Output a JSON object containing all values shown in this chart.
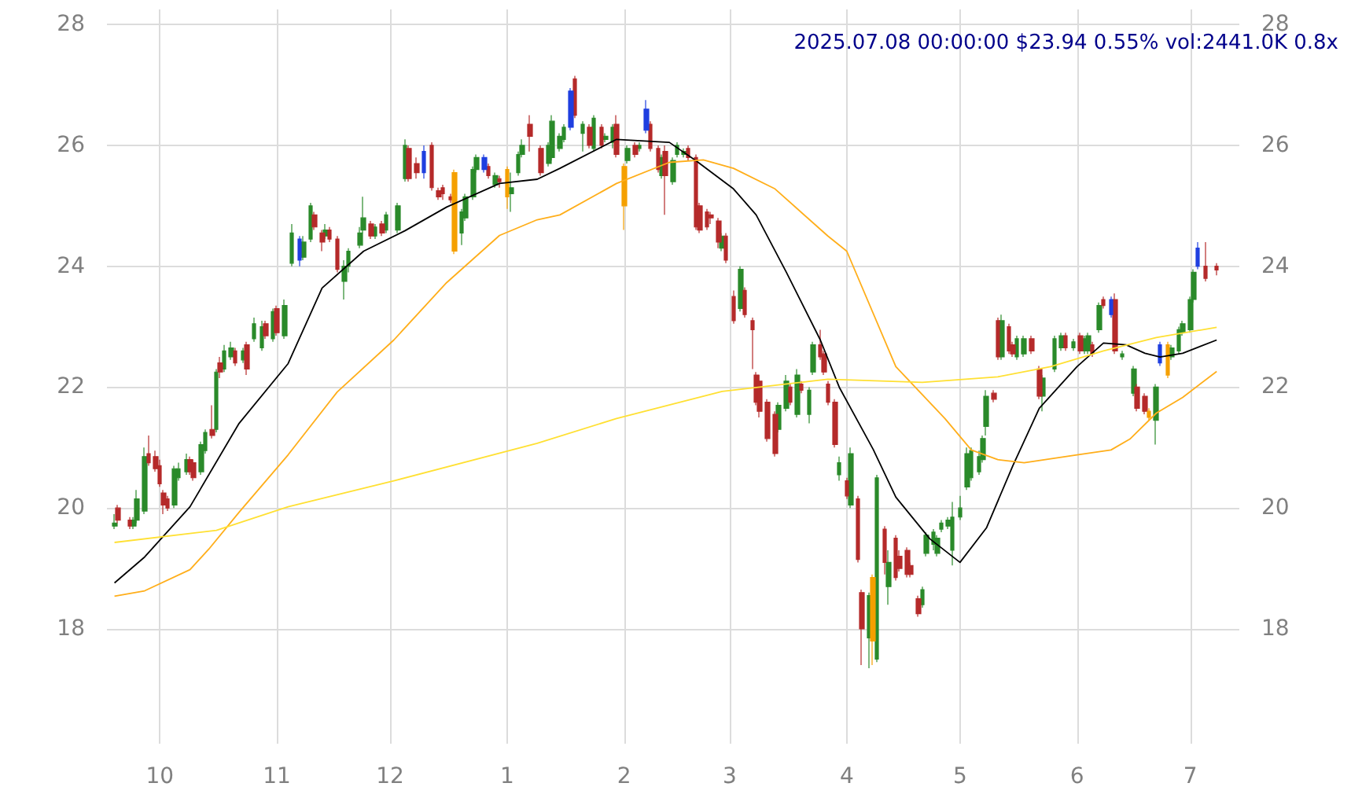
{
  "chart_data": {
    "type": "candlestick",
    "title": "2025.07.08 00:00:00 $23.94 0.55% vol:2441.0K 0.8x",
    "grid": true,
    "marker": "none",
    "line_style": "solid",
    "xlim": [
      "2024-09-17",
      "2025-07-14"
    ],
    "xticks": [
      {
        "value": "2024-10-01",
        "label": "10"
      },
      {
        "value": "2024-11-01",
        "label": "11"
      },
      {
        "value": "2024-12-01",
        "label": "12"
      },
      {
        "value": "2025-01-01",
        "label": "1"
      },
      {
        "value": "2025-02-01",
        "label": "2"
      },
      {
        "value": "2025-03-01",
        "label": "3"
      },
      {
        "value": "2025-04-01",
        "label": "4"
      },
      {
        "value": "2025-05-01",
        "label": "5"
      },
      {
        "value": "2025-06-01",
        "label": "6"
      },
      {
        "value": "2025-07-01",
        "label": "7"
      }
    ],
    "ylim": [
      16.1,
      28.25
    ],
    "yticks": [
      18,
      20,
      22,
      24,
      26,
      28
    ],
    "y2lim": [
      16.1,
      28.25
    ],
    "y2ticks": [
      18,
      20,
      22,
      24,
      26,
      28
    ],
    "x": [
      "2024-09-19",
      "2024-09-20",
      "2024-09-23",
      "2024-09-24",
      "2024-09-25",
      "2024-09-27",
      "2024-09-28",
      "2024-09-30",
      "2024-10-01",
      "2024-10-02",
      "2024-10-03",
      "2024-10-05",
      "2024-10-06",
      "2024-10-08",
      "2024-10-09",
      "2024-10-10",
      "2024-10-12",
      "2024-10-13",
      "2024-10-15",
      "2024-10-16",
      "2024-10-17",
      "2024-10-18",
      "2024-10-20",
      "2024-10-21",
      "2024-10-23",
      "2024-10-24",
      "2024-10-26",
      "2024-10-28",
      "2024-10-29",
      "2024-10-31",
      "2024-11-01",
      "2024-11-03",
      "2024-11-05",
      "2024-11-07",
      "2024-11-08",
      "2024-11-10",
      "2024-11-11",
      "2024-11-13",
      "2024-11-14",
      "2024-11-15",
      "2024-11-17",
      "2024-11-19",
      "2024-11-20",
      "2024-11-23",
      "2024-11-24",
      "2024-11-26",
      "2024-11-27",
      "2024-11-29",
      "2024-11-30",
      "2024-12-03",
      "2024-12-05",
      "2024-12-06",
      "2024-12-08",
      "2024-12-10",
      "2024-12-12",
      "2024-12-14",
      "2024-12-15",
      "2024-12-17",
      "2024-12-18",
      "2024-12-20",
      "2024-12-21",
      "2024-12-23",
      "2024-12-24",
      "2024-12-26",
      "2024-12-27",
      "2024-12-29",
      "2024-12-30",
      "2025-01-01",
      "2025-01-02",
      "2025-01-04",
      "2025-01-05",
      "2025-01-07",
      "2025-01-10",
      "2025-01-12",
      "2025-01-13",
      "2025-01-15",
      "2025-01-16",
      "2025-01-18",
      "2025-01-19",
      "2025-01-21",
      "2025-01-23",
      "2025-01-24",
      "2025-01-26",
      "2025-01-27",
      "2025-01-29",
      "2025-01-30",
      "2025-02-01",
      "2025-02-02",
      "2025-02-04",
      "2025-02-05",
      "2025-02-07",
      "2025-02-08",
      "2025-02-10",
      "2025-02-11",
      "2025-02-12",
      "2025-02-14",
      "2025-02-15",
      "2025-02-17",
      "2025-02-18",
      "2025-02-20",
      "2025-02-21",
      "2025-02-23",
      "2025-02-24",
      "2025-02-26",
      "2025-02-27",
      "2025-02-28",
      "2025-03-02",
      "2025-03-04",
      "2025-03-05",
      "2025-03-07",
      "2025-03-08",
      "2025-03-09",
      "2025-03-11",
      "2025-03-13",
      "2025-03-14",
      "2025-03-16",
      "2025-03-17",
      "2025-03-19",
      "2025-03-20",
      "2025-03-22",
      "2025-03-23",
      "2025-03-25",
      "2025-03-26",
      "2025-03-27",
      "2025-03-29",
      "2025-03-30",
      "2025-04-01",
      "2025-04-02",
      "2025-04-04",
      "2025-04-05",
      "2025-04-07",
      "2025-04-08",
      "2025-04-09",
      "2025-04-11",
      "2025-04-12",
      "2025-04-14",
      "2025-04-15",
      "2025-04-17",
      "2025-04-18",
      "2025-04-20",
      "2025-04-21",
      "2025-04-22",
      "2025-04-24",
      "2025-04-25",
      "2025-04-26",
      "2025-04-28",
      "2025-04-29",
      "2025-05-01",
      "2025-05-03",
      "2025-05-04",
      "2025-05-06",
      "2025-05-07",
      "2025-05-08",
      "2025-05-10",
      "2025-05-11",
      "2025-05-12",
      "2025-05-14",
      "2025-05-15",
      "2025-05-16",
      "2025-05-18",
      "2025-05-20",
      "2025-05-22",
      "2025-05-23",
      "2025-05-26",
      "2025-05-28",
      "2025-05-29",
      "2025-05-31",
      "2025-06-02",
      "2025-06-03",
      "2025-06-04",
      "2025-06-05",
      "2025-06-07",
      "2025-06-08",
      "2025-06-10",
      "2025-06-11",
      "2025-06-13",
      "2025-06-16",
      "2025-06-17",
      "2025-06-19",
      "2025-06-20",
      "2025-06-22",
      "2025-06-23",
      "2025-06-25",
      "2025-06-26",
      "2025-06-28",
      "2025-06-29",
      "2025-07-01",
      "2025-07-02",
      "2025-07-03",
      "2025-07-05",
      "2025-07-08"
    ],
    "ohlc": [
      [
        19.7,
        19.9,
        19.65,
        19.75
      ],
      [
        20.0,
        20.05,
        19.75,
        19.8
      ],
      [
        19.8,
        19.85,
        19.65,
        19.7
      ],
      [
        19.7,
        19.85,
        19.65,
        19.8
      ],
      [
        19.8,
        20.3,
        19.75,
        20.15
      ],
      [
        19.95,
        21.0,
        19.9,
        20.85
      ],
      [
        20.9,
        21.2,
        20.7,
        20.75
      ],
      [
        20.85,
        20.95,
        20.6,
        20.65
      ],
      [
        20.7,
        20.8,
        20.35,
        20.4
      ],
      [
        20.25,
        20.3,
        19.9,
        20.05
      ],
      [
        20.15,
        20.2,
        19.95,
        20.0
      ],
      [
        20.05,
        20.7,
        20.0,
        20.65
      ],
      [
        20.5,
        20.75,
        20.45,
        20.65
      ],
      [
        20.6,
        20.9,
        20.55,
        20.8
      ],
      [
        20.8,
        20.85,
        20.55,
        20.6
      ],
      [
        20.75,
        20.8,
        20.45,
        20.5
      ],
      [
        20.6,
        21.1,
        20.55,
        21.05
      ],
      [
        20.95,
        21.3,
        20.9,
        21.25
      ],
      [
        21.3,
        21.7,
        21.15,
        21.2
      ],
      [
        21.3,
        22.3,
        21.25,
        22.25
      ],
      [
        22.4,
        22.5,
        22.15,
        22.25
      ],
      [
        22.3,
        22.7,
        22.25,
        22.6
      ],
      [
        22.5,
        22.75,
        22.45,
        22.65
      ],
      [
        22.6,
        22.65,
        22.35,
        22.4
      ],
      [
        22.45,
        22.65,
        22.4,
        22.6
      ],
      [
        22.7,
        22.75,
        22.2,
        22.3
      ],
      [
        22.8,
        23.15,
        22.75,
        23.05
      ],
      [
        22.65,
        23.1,
        22.6,
        23.0
      ],
      [
        23.05,
        23.1,
        22.8,
        22.85
      ],
      [
        22.8,
        23.3,
        22.75,
        23.25
      ],
      [
        23.3,
        23.35,
        22.85,
        22.9
      ],
      [
        22.85,
        23.45,
        22.8,
        23.35
      ],
      [
        24.05,
        24.7,
        24.0,
        24.55
      ],
      [
        24.45,
        24.5,
        24.0,
        24.1
      ],
      [
        24.15,
        24.5,
        24.1,
        24.4
      ],
      [
        24.45,
        25.05,
        24.4,
        25.0
      ],
      [
        24.85,
        24.9,
        24.6,
        24.65
      ],
      [
        24.55,
        24.6,
        24.25,
        24.4
      ],
      [
        24.5,
        24.7,
        24.45,
        24.6
      ],
      [
        24.6,
        24.65,
        24.4,
        24.45
      ],
      [
        24.45,
        24.5,
        23.9,
        23.95
      ],
      [
        23.75,
        24.1,
        23.45,
        24.0
      ],
      [
        24.0,
        24.3,
        23.9,
        24.25
      ],
      [
        24.35,
        24.65,
        24.3,
        24.55
      ],
      [
        24.6,
        25.15,
        24.55,
        24.8
      ],
      [
        24.7,
        24.75,
        24.45,
        24.5
      ],
      [
        24.5,
        24.7,
        24.45,
        24.65
      ],
      [
        24.7,
        24.75,
        24.5,
        24.55
      ],
      [
        24.6,
        24.9,
        24.55,
        24.85
      ],
      [
        24.6,
        25.05,
        24.55,
        25.0
      ],
      [
        25.45,
        26.1,
        25.4,
        26.0
      ],
      [
        25.95,
        26.0,
        25.4,
        25.45
      ],
      [
        25.7,
        25.8,
        25.45,
        25.55
      ],
      [
        25.55,
        26.0,
        25.45,
        25.9
      ],
      [
        26.0,
        26.05,
        25.25,
        25.3
      ],
      [
        25.25,
        25.3,
        25.1,
        25.15
      ],
      [
        25.3,
        25.35,
        25.1,
        25.2
      ],
      [
        25.15,
        25.2,
        25.05,
        25.1
      ],
      [
        25.55,
        25.6,
        24.2,
        24.25
      ],
      [
        24.55,
        24.95,
        24.35,
        24.9
      ],
      [
        24.8,
        25.2,
        24.75,
        25.15
      ],
      [
        25.15,
        25.65,
        25.1,
        25.6
      ],
      [
        25.6,
        25.85,
        25.55,
        25.8
      ],
      [
        25.8,
        25.85,
        25.55,
        25.6
      ],
      [
        25.65,
        25.7,
        25.45,
        25.5
      ],
      [
        25.35,
        25.55,
        25.3,
        25.5
      ],
      [
        25.45,
        25.5,
        25.3,
        25.4
      ],
      [
        25.6,
        25.65,
        24.95,
        25.15
      ],
      [
        25.2,
        25.55,
        24.9,
        25.3
      ],
      [
        25.55,
        25.9,
        25.5,
        25.85
      ],
      [
        25.85,
        26.1,
        25.8,
        26.0
      ],
      [
        26.35,
        26.5,
        25.9,
        26.15
      ],
      [
        25.95,
        26.0,
        25.5,
        25.55
      ],
      [
        25.7,
        26.05,
        25.65,
        26.0
      ],
      [
        25.8,
        26.5,
        25.75,
        26.4
      ],
      [
        25.95,
        26.2,
        25.9,
        26.15
      ],
      [
        26.1,
        26.35,
        26.05,
        26.3
      ],
      [
        26.3,
        26.95,
        26.25,
        26.9
      ],
      [
        27.1,
        27.15,
        26.45,
        26.5
      ],
      [
        26.2,
        26.4,
        25.9,
        26.35
      ],
      [
        26.3,
        26.35,
        25.95,
        26.0
      ],
      [
        25.95,
        26.5,
        25.9,
        26.45
      ],
      [
        26.3,
        26.35,
        25.95,
        26.0
      ],
      [
        26.1,
        26.2,
        26.05,
        26.15
      ],
      [
        26.05,
        26.35,
        25.95,
        26.3
      ],
      [
        26.35,
        26.5,
        25.8,
        25.85
      ],
      [
        25.65,
        25.7,
        24.6,
        25.0
      ],
      [
        25.75,
        26.0,
        25.7,
        25.95
      ],
      [
        26.0,
        26.05,
        25.8,
        25.85
      ],
      [
        25.95,
        26.05,
        25.9,
        26.0
      ],
      [
        26.6,
        26.75,
        26.2,
        26.25
      ],
      [
        26.35,
        26.4,
        25.9,
        25.95
      ],
      [
        25.95,
        26.0,
        25.55,
        25.6
      ],
      [
        25.5,
        25.85,
        25.45,
        25.8
      ],
      [
        25.9,
        26.0,
        24.85,
        25.5
      ],
      [
        25.4,
        25.8,
        25.35,
        25.75
      ],
      [
        25.85,
        26.05,
        25.8,
        26.0
      ],
      [
        25.85,
        25.95,
        25.8,
        25.9
      ],
      [
        25.95,
        26.0,
        25.75,
        25.8
      ],
      [
        25.8,
        25.85,
        24.6,
        24.65
      ],
      [
        25.0,
        25.05,
        24.55,
        24.6
      ],
      [
        24.9,
        24.95,
        24.6,
        24.65
      ],
      [
        24.85,
        24.9,
        24.7,
        24.8
      ],
      [
        24.75,
        24.8,
        24.3,
        24.4
      ],
      [
        24.3,
        24.55,
        24.25,
        24.5
      ],
      [
        24.5,
        24.55,
        24.05,
        24.1
      ],
      [
        23.5,
        23.6,
        23.05,
        23.1
      ],
      [
        23.3,
        24.0,
        23.25,
        23.95
      ],
      [
        23.6,
        23.65,
        23.15,
        23.2
      ],
      [
        23.1,
        23.15,
        22.3,
        22.95
      ],
      [
        22.2,
        22.25,
        21.7,
        21.75
      ],
      [
        22.1,
        22.2,
        21.5,
        21.6
      ],
      [
        21.75,
        21.8,
        21.1,
        21.15
      ],
      [
        21.55,
        21.6,
        20.85,
        20.9
      ],
      [
        21.3,
        21.75,
        21.25,
        21.7
      ],
      [
        21.65,
        22.2,
        21.6,
        22.1
      ],
      [
        22.0,
        22.05,
        21.7,
        21.75
      ],
      [
        21.55,
        22.3,
        21.5,
        22.2
      ],
      [
        22.05,
        22.1,
        21.9,
        21.95
      ],
      [
        21.55,
        22.0,
        21.4,
        21.95
      ],
      [
        22.25,
        22.75,
        22.2,
        22.7
      ],
      [
        22.7,
        22.95,
        22.45,
        22.5
      ],
      [
        22.55,
        22.6,
        22.2,
        22.25
      ],
      [
        22.05,
        22.1,
        21.7,
        21.75
      ],
      [
        21.75,
        21.8,
        21.0,
        21.05
      ],
      [
        20.55,
        20.85,
        20.45,
        20.75
      ],
      [
        20.45,
        20.5,
        20.15,
        20.2
      ],
      [
        20.05,
        21.0,
        20.0,
        20.9
      ],
      [
        20.15,
        20.2,
        19.1,
        19.15
      ],
      [
        18.6,
        18.65,
        17.4,
        18.0
      ],
      [
        17.85,
        18.6,
        17.35,
        18.55
      ],
      [
        18.85,
        18.9,
        17.4,
        17.8
      ],
      [
        17.5,
        20.55,
        17.45,
        20.5
      ],
      [
        19.65,
        19.7,
        18.9,
        19.1
      ],
      [
        18.7,
        19.3,
        18.4,
        19.1
      ],
      [
        19.5,
        19.55,
        18.8,
        18.85
      ],
      [
        19.2,
        19.3,
        18.95,
        19.0
      ],
      [
        19.3,
        19.35,
        18.85,
        18.9
      ],
      [
        19.05,
        19.1,
        18.85,
        18.9
      ],
      [
        18.5,
        18.55,
        18.2,
        18.25
      ],
      [
        18.4,
        18.7,
        18.35,
        18.65
      ],
      [
        19.25,
        19.6,
        19.2,
        19.55
      ],
      [
        19.4,
        19.65,
        19.3,
        19.6
      ],
      [
        19.25,
        19.55,
        19.2,
        19.5
      ],
      [
        19.65,
        19.8,
        19.6,
        19.75
      ],
      [
        19.7,
        19.85,
        19.65,
        19.8
      ],
      [
        19.3,
        20.1,
        19.05,
        19.85
      ],
      [
        19.85,
        20.2,
        19.8,
        20.0
      ],
      [
        20.35,
        21.0,
        20.3,
        20.9
      ],
      [
        20.5,
        21.0,
        20.45,
        20.95
      ],
      [
        20.6,
        20.95,
        20.55,
        20.85
      ],
      [
        20.8,
        21.2,
        20.75,
        21.15
      ],
      [
        21.35,
        21.95,
        21.2,
        21.85
      ],
      [
        21.9,
        21.95,
        21.75,
        21.8
      ],
      [
        23.1,
        23.15,
        22.45,
        22.5
      ],
      [
        22.5,
        23.2,
        22.45,
        23.1
      ],
      [
        23.0,
        23.05,
        22.55,
        22.6
      ],
      [
        22.7,
        22.75,
        22.5,
        22.55
      ],
      [
        22.5,
        22.85,
        22.45,
        22.8
      ],
      [
        22.55,
        22.85,
        22.5,
        22.8
      ],
      [
        22.8,
        22.85,
        22.55,
        22.6
      ],
      [
        22.3,
        22.35,
        21.8,
        21.85
      ],
      [
        21.85,
        22.2,
        21.6,
        22.15
      ],
      [
        22.3,
        22.85,
        22.25,
        22.8
      ],
      [
        22.65,
        22.9,
        22.6,
        22.85
      ],
      [
        22.85,
        22.9,
        22.6,
        22.65
      ],
      [
        22.65,
        22.8,
        22.6,
        22.75
      ],
      [
        22.85,
        22.9,
        22.55,
        22.6
      ],
      [
        22.6,
        22.85,
        22.55,
        22.8
      ],
      [
        22.6,
        22.9,
        22.55,
        22.85
      ],
      [
        22.7,
        22.75,
        22.5,
        22.55
      ],
      [
        22.95,
        23.4,
        22.9,
        23.35
      ],
      [
        23.45,
        23.5,
        23.3,
        23.35
      ],
      [
        23.45,
        23.5,
        23.15,
        23.2
      ],
      [
        23.45,
        23.55,
        22.55,
        22.6
      ],
      [
        22.5,
        22.6,
        22.45,
        22.55
      ],
      [
        21.9,
        22.35,
        21.85,
        22.3
      ],
      [
        22.0,
        22.05,
        21.6,
        21.65
      ],
      [
        21.85,
        21.9,
        21.55,
        21.6
      ],
      [
        21.6,
        21.65,
        21.45,
        21.5
      ],
      [
        21.45,
        22.05,
        21.05,
        22.0
      ],
      [
        22.7,
        22.75,
        22.35,
        22.4
      ],
      [
        22.7,
        22.75,
        22.15,
        22.2
      ],
      [
        22.5,
        22.7,
        22.45,
        22.65
      ],
      [
        22.6,
        23.0,
        22.55,
        22.95
      ],
      [
        22.9,
        23.1,
        22.85,
        23.05
      ],
      [
        22.95,
        23.5,
        22.9,
        23.45
      ],
      [
        23.45,
        23.95,
        23.4,
        23.9
      ],
      [
        24.0,
        24.4,
        23.95,
        24.3
      ],
      [
        24.0,
        24.4,
        23.75,
        23.8
      ],
      [
        24.0,
        24.05,
        23.85,
        23.94
      ]
    ],
    "colors": [
      "#2a8a2a",
      "#b52a2a",
      "#b52a2a",
      "#2a8a2a",
      "#2a8a2a",
      "#2a8a2a",
      "#b52a2a",
      "#b52a2a",
      "#b52a2a",
      "#b52a2a",
      "#b52a2a",
      "#2a8a2a",
      "#2a8a2a",
      "#2a8a2a",
      "#b52a2a",
      "#b52a2a",
      "#2a8a2a",
      "#2a8a2a",
      "#b52a2a",
      "#2a8a2a",
      "#b52a2a",
      "#2a8a2a",
      "#2a8a2a",
      "#b52a2a",
      "#2a8a2a",
      "#b52a2a",
      "#2a8a2a",
      "#2a8a2a",
      "#b52a2a",
      "#2a8a2a",
      "#b52a2a",
      "#2a8a2a",
      "#2a8a2a",
      "#1f3fe0",
      "#2a8a2a",
      "#2a8a2a",
      "#b52a2a",
      "#b52a2a",
      "#2a8a2a",
      "#b52a2a",
      "#b52a2a",
      "#2a8a2a",
      "#2a8a2a",
      "#2a8a2a",
      "#2a8a2a",
      "#b52a2a",
      "#2a8a2a",
      "#b52a2a",
      "#2a8a2a",
      "#2a8a2a",
      "#2a8a2a",
      "#b52a2a",
      "#b52a2a",
      "#1f3fe0",
      "#b52a2a",
      "#b52a2a",
      "#b52a2a",
      "#b52a2a",
      "#f5a000",
      "#2a8a2a",
      "#2a8a2a",
      "#2a8a2a",
      "#2a8a2a",
      "#1f3fe0",
      "#b52a2a",
      "#2a8a2a",
      "#b52a2a",
      "#f5a000",
      "#2a8a2a",
      "#2a8a2a",
      "#2a8a2a",
      "#b52a2a",
      "#b52a2a",
      "#2a8a2a",
      "#2a8a2a",
      "#2a8a2a",
      "#2a8a2a",
      "#1f3fe0",
      "#b52a2a",
      "#2a8a2a",
      "#b52a2a",
      "#2a8a2a",
      "#b52a2a",
      "#2a8a2a",
      "#2a8a2a",
      "#b52a2a",
      "#f5a000",
      "#2a8a2a",
      "#b52a2a",
      "#2a8a2a",
      "#1f3fe0",
      "#b52a2a",
      "#b52a2a",
      "#2a8a2a",
      "#b52a2a",
      "#2a8a2a",
      "#2a8a2a",
      "#2a8a2a",
      "#b52a2a",
      "#b52a2a",
      "#b52a2a",
      "#b52a2a",
      "#b52a2a",
      "#b52a2a",
      "#2a8a2a",
      "#b52a2a",
      "#b52a2a",
      "#2a8a2a",
      "#b52a2a",
      "#b52a2a",
      "#b52a2a",
      "#b52a2a",
      "#b52a2a",
      "#b52a2a",
      "#2a8a2a",
      "#2a8a2a",
      "#b52a2a",
      "#2a8a2a",
      "#b52a2a",
      "#2a8a2a",
      "#2a8a2a",
      "#b52a2a",
      "#b52a2a",
      "#b52a2a",
      "#b52a2a",
      "#2a8a2a",
      "#b52a2a",
      "#2a8a2a",
      "#b52a2a",
      "#b52a2a",
      "#2a8a2a",
      "#f5a000",
      "#2a8a2a",
      "#b52a2a",
      "#2a8a2a",
      "#b52a2a",
      "#b52a2a",
      "#b52a2a",
      "#b52a2a",
      "#b52a2a",
      "#2a8a2a",
      "#2a8a2a",
      "#2a8a2a",
      "#2a8a2a",
      "#2a8a2a",
      "#2a8a2a",
      "#2a8a2a",
      "#2a8a2a",
      "#2a8a2a",
      "#2a8a2a",
      "#2a8a2a",
      "#2a8a2a",
      "#2a8a2a",
      "#b52a2a",
      "#b52a2a",
      "#2a8a2a",
      "#b52a2a",
      "#b52a2a",
      "#2a8a2a",
      "#2a8a2a",
      "#b52a2a",
      "#b52a2a",
      "#2a8a2a",
      "#2a8a2a",
      "#2a8a2a",
      "#b52a2a",
      "#2a8a2a",
      "#b52a2a",
      "#2a8a2a",
      "#2a8a2a",
      "#b52a2a",
      "#2a8a2a",
      "#b52a2a",
      "#1f3fe0",
      "#b52a2a",
      "#2a8a2a",
      "#2a8a2a",
      "#b52a2a",
      "#b52a2a",
      "#f5a000",
      "#2a8a2a",
      "#1f3fe0",
      "#f5a000",
      "#2a8a2a",
      "#2a8a2a",
      "#2a8a2a",
      "#2a8a2a",
      "#2a8a2a",
      "#1f3fe0",
      "#b52a2a",
      "#b52a2a"
    ],
    "series": [
      {
        "type": "line",
        "color": "#000000",
        "x": [
          "2024-09-19",
          "2024-09-27",
          "2024-10-09",
          "2024-10-22",
          "2024-11-04",
          "2024-11-13",
          "2024-11-24",
          "2024-12-05",
          "2024-12-16",
          "2024-12-30",
          "2025-01-09",
          "2025-01-15",
          "2025-01-30",
          "2025-02-13",
          "2025-02-20",
          "2025-03-02",
          "2025-03-08",
          "2025-03-16",
          "2025-03-25",
          "2025-03-30",
          "2025-04-08",
          "2025-04-14",
          "2025-04-23",
          "2025-05-01",
          "2025-05-08",
          "2025-05-15",
          "2025-05-22",
          "2025-06-01",
          "2025-06-08",
          "2025-06-14",
          "2025-06-19",
          "2025-06-23",
          "2025-06-29",
          "2025-07-08"
        ],
        "values": [
          18.76,
          19.19,
          20.02,
          21.4,
          22.39,
          23.64,
          24.25,
          24.59,
          24.98,
          25.37,
          25.44,
          25.62,
          26.1,
          26.05,
          25.75,
          25.28,
          24.85,
          23.9,
          22.78,
          22.0,
          20.97,
          20.18,
          19.49,
          19.1,
          19.67,
          20.7,
          21.65,
          22.34,
          22.73,
          22.7,
          22.56,
          22.5,
          22.56,
          22.78
        ]
      },
      {
        "type": "line",
        "color": "#ffae1a",
        "x": [
          "2024-09-19",
          "2024-09-27",
          "2024-10-09",
          "2024-10-14",
          "2024-10-22",
          "2024-11-04",
          "2024-11-17",
          "2024-12-02",
          "2024-12-16",
          "2024-12-30",
          "2025-01-09",
          "2025-01-15",
          "2025-01-30",
          "2025-02-13",
          "2025-02-22",
          "2025-03-02",
          "2025-03-13",
          "2025-03-27",
          "2025-04-01",
          "2025-04-14",
          "2025-04-27",
          "2025-05-04",
          "2025-05-11",
          "2025-05-18",
          "2025-06-01",
          "2025-06-10",
          "2025-06-15",
          "2025-06-22",
          "2025-06-29",
          "2025-07-08"
        ],
        "values": [
          18.54,
          18.63,
          18.98,
          19.32,
          19.93,
          20.88,
          21.92,
          22.78,
          23.73,
          24.51,
          24.77,
          24.85,
          25.37,
          25.72,
          25.76,
          25.62,
          25.28,
          24.5,
          24.25,
          22.34,
          21.48,
          20.96,
          20.8,
          20.75,
          20.88,
          20.96,
          21.14,
          21.57,
          21.83,
          22.26
        ]
      },
      {
        "type": "line",
        "color": "#ffe033",
        "x": [
          "2024-09-19",
          "2024-10-16",
          "2024-11-04",
          "2024-12-02",
          "2025-01-09",
          "2025-01-30",
          "2025-02-27",
          "2025-03-27",
          "2025-04-21",
          "2025-05-11",
          "2025-05-25",
          "2025-06-08",
          "2025-06-22",
          "2025-07-08"
        ],
        "values": [
          19.43,
          19.63,
          20.02,
          20.45,
          21.07,
          21.48,
          21.93,
          22.13,
          22.08,
          22.17,
          22.34,
          22.6,
          22.82,
          22.99
        ]
      }
    ]
  }
}
